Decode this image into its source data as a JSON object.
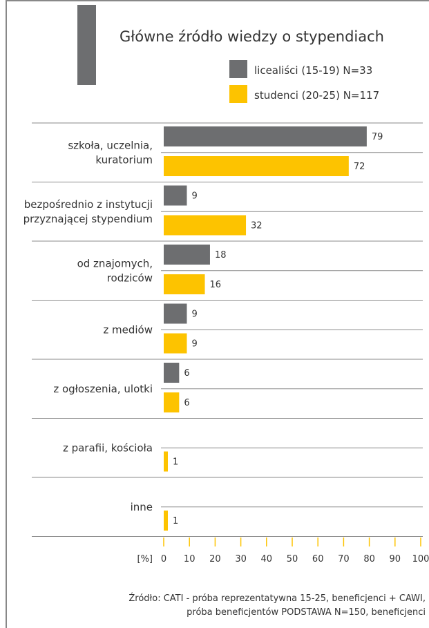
{
  "chart_data": {
    "type": "bar",
    "orientation": "horizontal",
    "title": "Główne źródło wiedzy o stypendiach",
    "categories": [
      [
        "szkoła, uczelnia,",
        "kuratorium"
      ],
      [
        "bezpośrednio z instytucji",
        "przyznającej stypendium"
      ],
      [
        "od znajomych,",
        "rodziców"
      ],
      [
        "z mediów"
      ],
      [
        "z ogłoszenia, ulotki"
      ],
      [
        "z parafii, kościoła"
      ],
      [
        "inne"
      ]
    ],
    "series": [
      {
        "name": "licealiści (15-19) N=33",
        "color": "#6d6e70",
        "values": [
          79,
          9,
          18,
          9,
          6,
          null,
          null
        ]
      },
      {
        "name": "studenci (20-25) N=117",
        "color": "#fdc300",
        "values": [
          72,
          32,
          16,
          9,
          6,
          1,
          1
        ]
      }
    ],
    "xlabel": "[%]",
    "xlim": [
      0,
      100
    ],
    "xticks": [
      "0",
      "10",
      "20",
      "30",
      "40",
      "50",
      "60",
      "70",
      "80",
      "90",
      "100"
    ],
    "legend_position": "top-right",
    "grid": false
  },
  "source": {
    "line1": "Źródło: CATI - próba reprezentatywna 15-25, beneficjenci + CAWI,",
    "line2": "próba beneficjentów PODSTAWA N=150, beneficjenci"
  },
  "colors": {
    "frame": "#888888",
    "accent_bar": "#6d6e70",
    "separator": "#8a8a8a"
  }
}
